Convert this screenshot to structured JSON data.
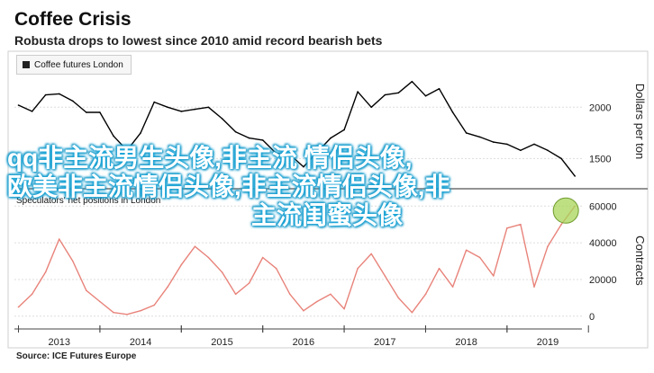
{
  "header": {
    "title": "Coffee Crisis",
    "subtitle": "Robusta drops to lowest since 2010 amid record bearish bets"
  },
  "legend": {
    "top_label": "Coffee futures London",
    "bottom_label": "Speculators' net positions in London"
  },
  "source": "Source: ICE Futures Europe",
  "watermark": {
    "line1": "qq非主流男生头像,非主流 情侣头像,",
    "line2": "欧美非主流情侣头像,非主流情侣头像,非",
    "line3": "主流闺蜜头像"
  },
  "colors": {
    "price_line": "#000000",
    "positions_line": "#e8837a",
    "grid": "#dddddd",
    "marker": "#a8d65a",
    "watermark_glow": "#1aa6d9"
  },
  "chart_data": [
    {
      "type": "line",
      "title": "",
      "ylabel": "Dollars per ton",
      "ylim": [
        1250,
        2300
      ],
      "yticks": [
        1500,
        2000
      ],
      "grid": true,
      "legend": "top-left",
      "series": [
        {
          "name": "Coffee futures London",
          "x": [
            "2012-07",
            "2012-09",
            "2012-11",
            "2013-01",
            "2013-03",
            "2013-05",
            "2013-07",
            "2013-09",
            "2013-11",
            "2014-01",
            "2014-03",
            "2014-05",
            "2014-07",
            "2014-09",
            "2014-11",
            "2015-01",
            "2015-03",
            "2015-05",
            "2015-07",
            "2015-09",
            "2015-11",
            "2016-01",
            "2016-03",
            "2016-05",
            "2016-07",
            "2016-09",
            "2016-11",
            "2017-01",
            "2017-03",
            "2017-05",
            "2017-07",
            "2017-09",
            "2017-11",
            "2018-01",
            "2018-03",
            "2018-05",
            "2018-07",
            "2018-09",
            "2018-11",
            "2019-01",
            "2019-03",
            "2019-05"
          ],
          "y": [
            2020,
            1960,
            2120,
            2130,
            2060,
            1950,
            1950,
            1720,
            1580,
            1750,
            2050,
            2000,
            1960,
            1980,
            2000,
            1890,
            1760,
            1700,
            1680,
            1550,
            1540,
            1420,
            1560,
            1700,
            1780,
            2150,
            2000,
            2120,
            2140,
            2250,
            2110,
            2180,
            1950,
            1750,
            1710,
            1660,
            1640,
            1580,
            1640,
            1580,
            1500,
            1330
          ]
        }
      ]
    },
    {
      "type": "line",
      "title": "",
      "ylabel": "Contracts",
      "ylim": [
        -5000,
        67000
      ],
      "yticks": [
        0,
        20000,
        40000,
        60000
      ],
      "xticks": [
        "2013",
        "2014",
        "2015",
        "2016",
        "2017",
        "2018",
        "2019"
      ],
      "grid": true,
      "legend": "top-left",
      "series": [
        {
          "name": "Speculators' net positions in London",
          "x": [
            "2012-07",
            "2012-09",
            "2012-11",
            "2013-01",
            "2013-03",
            "2013-05",
            "2013-07",
            "2013-09",
            "2013-11",
            "2014-01",
            "2014-03",
            "2014-05",
            "2014-07",
            "2014-09",
            "2014-11",
            "2015-01",
            "2015-03",
            "2015-05",
            "2015-07",
            "2015-09",
            "2015-11",
            "2016-01",
            "2016-03",
            "2016-05",
            "2016-07",
            "2016-09",
            "2016-11",
            "2017-01",
            "2017-03",
            "2017-05",
            "2017-07",
            "2017-09",
            "2017-11",
            "2018-01",
            "2018-03",
            "2018-05",
            "2018-07",
            "2018-09",
            "2018-11",
            "2019-01",
            "2019-03",
            "2019-05"
          ],
          "y": [
            5000,
            12000,
            24000,
            42000,
            30000,
            14000,
            8000,
            2000,
            1000,
            3000,
            6000,
            16000,
            28000,
            38000,
            32000,
            24000,
            12000,
            18000,
            32000,
            26000,
            12000,
            3000,
            8000,
            12000,
            4000,
            26000,
            34000,
            22000,
            10000,
            2000,
            12000,
            26000,
            16000,
            36000,
            32000,
            22000,
            48000,
            50000,
            16000,
            38000,
            50000,
            60000
          ]
        }
      ]
    }
  ]
}
